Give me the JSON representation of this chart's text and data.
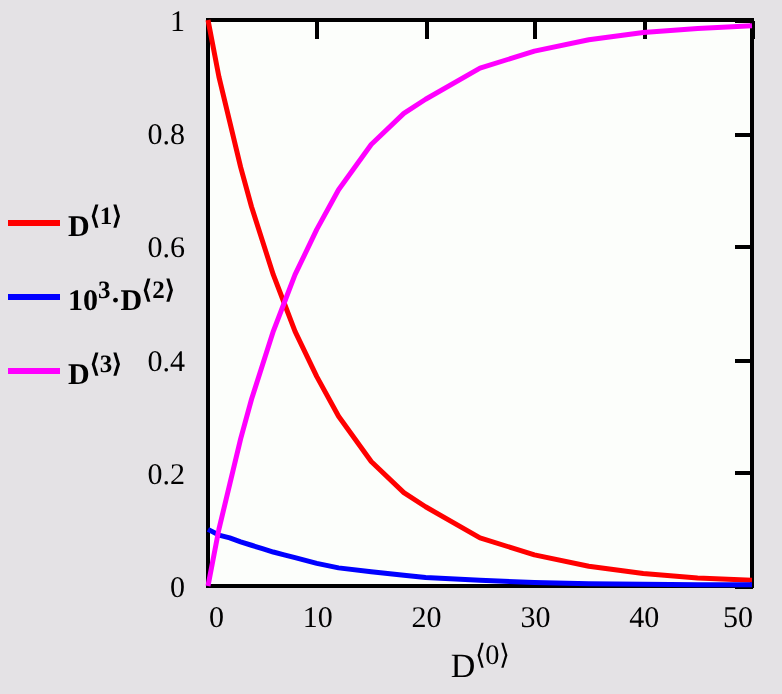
{
  "chart_data": {
    "type": "line",
    "xlabel": "D$^{⟨0⟩}$",
    "x": [
      0,
      1,
      2,
      3,
      4,
      5,
      6,
      7,
      8,
      10,
      12,
      15,
      18,
      20,
      25,
      30,
      35,
      40,
      45,
      50
    ],
    "series": [
      {
        "name": "D$^{⟨1⟩}$",
        "color": "#ff0000",
        "values": [
          1,
          0.9,
          0.82,
          0.74,
          0.67,
          0.61,
          0.55,
          0.5,
          0.45,
          0.37,
          0.3,
          0.22,
          0.165,
          0.14,
          0.085,
          0.055,
          0.035,
          0.022,
          0.014,
          0.01
        ]
      },
      {
        "name": "10$^{3}$·D$^{⟨2⟩}$",
        "color": "#0000ff",
        "values": [
          0.1,
          0.09,
          0.085,
          0.078,
          0.072,
          0.066,
          0.06,
          0.055,
          0.05,
          0.04,
          0.032,
          0.025,
          0.019,
          0.015,
          0.01,
          0.006,
          0.004,
          0.003,
          0.002,
          0.002
        ]
      },
      {
        "name": "D$^{⟨3⟩}$",
        "color": "#ff00ff",
        "values": [
          0,
          0.1,
          0.18,
          0.26,
          0.33,
          0.39,
          0.45,
          0.5,
          0.55,
          0.63,
          0.7,
          0.78,
          0.835,
          0.86,
          0.915,
          0.945,
          0.965,
          0.978,
          0.985,
          0.99
        ]
      }
    ],
    "xlim": [
      0,
      50
    ],
    "xticks": [
      0,
      10,
      20,
      30,
      40,
      50
    ],
    "ylim": [
      0,
      1
    ],
    "yticks": [
      0,
      0.2,
      0.4,
      0.6,
      0.8,
      1
    ],
    "legend": "left",
    "grid": false,
    "marker": "none",
    "line_style": "solid"
  }
}
